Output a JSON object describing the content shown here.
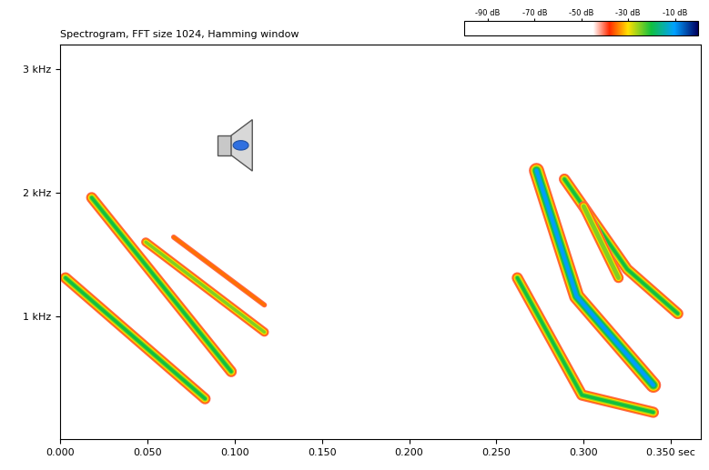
{
  "chart_data": {
    "type": "spectrogram",
    "title": "Spectrogram, FFT size 1024, Hamming window",
    "xlim": [
      0,
      0.367
    ],
    "ylim": [
      0,
      3.2
    ],
    "xticks": [
      {
        "value": 0,
        "label": "0.000"
      },
      {
        "value": 0.05,
        "label": "0.050"
      },
      {
        "value": 0.1,
        "label": "0.100"
      },
      {
        "value": 0.15,
        "label": "0.150"
      },
      {
        "value": 0.2,
        "label": "0.200"
      },
      {
        "value": 0.25,
        "label": "0.250"
      },
      {
        "value": 0.3,
        "label": "0.300"
      },
      {
        "value": 0.35,
        "label": "0.350 sec"
      }
    ],
    "yticks": [
      {
        "value": 1,
        "label": "1 kHz"
      },
      {
        "value": 2,
        "label": "2 kHz"
      },
      {
        "value": 3,
        "label": "3 kHz"
      }
    ],
    "colorbar": {
      "range": [
        -100,
        0
      ],
      "ticks": [
        {
          "value": -90,
          "label": "-90 dB"
        },
        {
          "value": -70,
          "label": "-70 dB"
        },
        {
          "value": -50,
          "label": "-50 dB"
        },
        {
          "value": -30,
          "label": "-30 dB"
        },
        {
          "value": -10,
          "label": "-10 dB"
        }
      ]
    },
    "tracks": [
      {
        "x": [
          0.003,
          0.083
        ],
        "y": [
          1.31,
          0.33
        ],
        "level": -20
      },
      {
        "x": [
          0.018,
          0.098
        ],
        "y": [
          1.96,
          0.55
        ],
        "level": -20
      },
      {
        "x": [
          0.049,
          0.117
        ],
        "y": [
          1.6,
          0.87
        ],
        "level": -25
      },
      {
        "x": [
          0.065,
          0.117
        ],
        "y": [
          1.64,
          1.09
        ],
        "level": -35
      },
      {
        "x": [
          0.262,
          0.299,
          0.34
        ],
        "y": [
          1.31,
          0.36,
          0.22
        ],
        "level": -20
      },
      {
        "x": [
          0.273,
          0.296,
          0.34
        ],
        "y": [
          2.18,
          1.16,
          0.44
        ],
        "level": -10
      },
      {
        "x": [
          0.289,
          0.325,
          0.354
        ],
        "y": [
          2.11,
          1.38,
          1.02
        ],
        "level": -20
      },
      {
        "x": [
          0.3,
          0.32
        ],
        "y": [
          1.89,
          1.31
        ],
        "level": -22
      }
    ]
  }
}
